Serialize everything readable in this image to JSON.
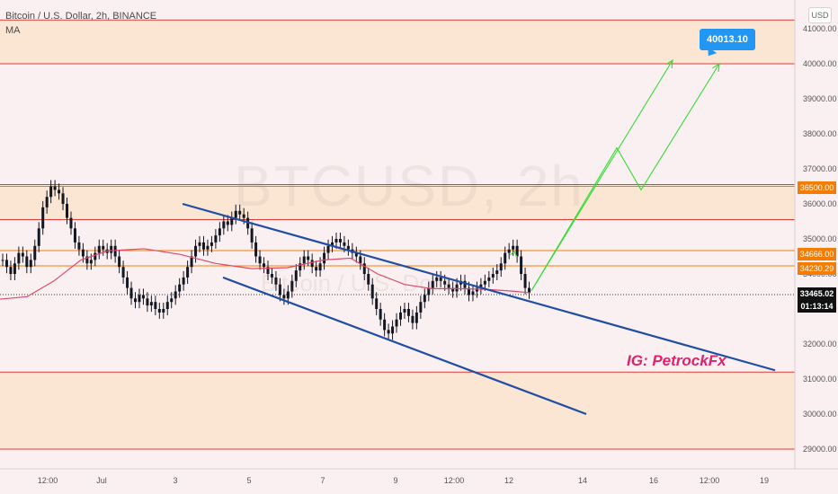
{
  "legend": {
    "symbol_line": "Bitcoin / U.S. Dollar, 2h, BINANCE",
    "indicator": "MA"
  },
  "axis": {
    "currency_button": "USD",
    "y_ticks": [
      41000,
      40000,
      39000,
      38000,
      37000,
      36000,
      35000,
      34000,
      33000,
      32000,
      31000,
      30000,
      29000
    ],
    "y_tick_labels": [
      "41000.00",
      "40000.00",
      "39000.00",
      "38000.00",
      "37000.00",
      "36000.00",
      "35000.00",
      "34000.00",
      "33000.00",
      "32000.00",
      "31000.00",
      "30000.00",
      "29000.00"
    ],
    "x_tick_labels": [
      "12:00",
      "Jul",
      "3",
      "5",
      "7",
      "9",
      "12:00",
      "12",
      "14",
      "16",
      "12:00",
      "19"
    ]
  },
  "watermark": {
    "symbol": "BTCUSD, 2h",
    "name": "Bitcoin / U.S. Dollar"
  },
  "signature": "IG: PetrockFx",
  "target_label": "40013.10",
  "price_labels": {
    "level_36500": "36500.00",
    "level_34666": "34666.00",
    "level_34230": "34230.29",
    "current_price": "33465.02",
    "countdown": "01:13:14"
  },
  "colors": {
    "background": "#fbf0f1",
    "zone": "#fbe6d4",
    "zone_line": "#e53935",
    "orange_line": "#f57c00",
    "channel": "#1f4ea3",
    "ma": "#e0486c",
    "projection": "#33dd33",
    "candle": "#131722",
    "callout": "#2196f3"
  },
  "chart_data": {
    "type": "candlestick",
    "ylim": [
      28700,
      41600
    ],
    "x_range": [
      0,
      880
    ],
    "zones": [
      [
        40000,
        41250
      ],
      [
        35550,
        36550
      ],
      [
        29000,
        31200
      ]
    ],
    "horizontal_levels": [
      36500,
      34666,
      34230.29
    ],
    "current_price": 33465.02,
    "ma_line": [
      [
        0,
        33280
      ],
      [
        30,
        33350
      ],
      [
        60,
        33800
      ],
      [
        90,
        34400
      ],
      [
        120,
        34660
      ],
      [
        160,
        34720
      ],
      [
        200,
        34560
      ],
      [
        240,
        34300
      ],
      [
        280,
        34150
      ],
      [
        320,
        34180
      ],
      [
        360,
        34400
      ],
      [
        390,
        34450
      ],
      [
        420,
        34000
      ],
      [
        450,
        33700
      ],
      [
        480,
        33580
      ],
      [
        510,
        33580
      ],
      [
        540,
        33560
      ],
      [
        570,
        33510
      ],
      [
        590,
        33460
      ]
    ],
    "channel_upper": [
      [
        203,
        36000
      ],
      [
        862,
        31250
      ]
    ],
    "channel_lower": [
      [
        248,
        33900
      ],
      [
        652,
        30000
      ]
    ],
    "projection": [
      [
        591,
        33520
      ],
      [
        686,
        37600
      ],
      [
        713,
        36400
      ],
      [
        800,
        40000
      ]
    ],
    "projection2": [
      [
        591,
        33520
      ],
      [
        748,
        40100
      ]
    ],
    "close_series": [
      34400,
      34200,
      34000,
      34300,
      34600,
      34500,
      34200,
      34400,
      34800,
      35300,
      35900,
      36200,
      36500,
      36400,
      36300,
      36000,
      35600,
      35300,
      34900,
      34700,
      34500,
      34300,
      34400,
      34600,
      34800,
      34700,
      34600,
      34800,
      34500,
      34200,
      33900,
      33600,
      33300,
      33200,
      33400,
      33300,
      33100,
      33200,
      33000,
      32900,
      33000,
      33200,
      33300,
      33500,
      33700,
      33900,
      34200,
      34500,
      34800,
      34900,
      34700,
      34800,
      34900,
      35100,
      35300,
      35500,
      35400,
      35600,
      35800,
      35700,
      35600,
      35300,
      34900,
      34500,
      34300,
      34200,
      34000,
      33900,
      33700,
      33400,
      33300,
      33500,
      33800,
      34100,
      34300,
      34500,
      34400,
      34200,
      34100,
      34300,
      34600,
      34800,
      34900,
      35000,
      34900,
      34800,
      34700,
      34600,
      34500,
      34300,
      34000,
      33700,
      33300,
      33000,
      32700,
      32400,
      32300,
      32500,
      32700,
      32900,
      33000,
      32800,
      32600,
      32900,
      33200,
      33400,
      33600,
      33800,
      33900,
      33800,
      33700,
      33600,
      33500,
      33700,
      33800,
      33600,
      33400,
      33500,
      33600,
      33700,
      33800,
      33900,
      34000,
      34100,
      34300,
      34600,
      34700,
      34800,
      34500,
      34000,
      33600,
      33465
    ]
  }
}
